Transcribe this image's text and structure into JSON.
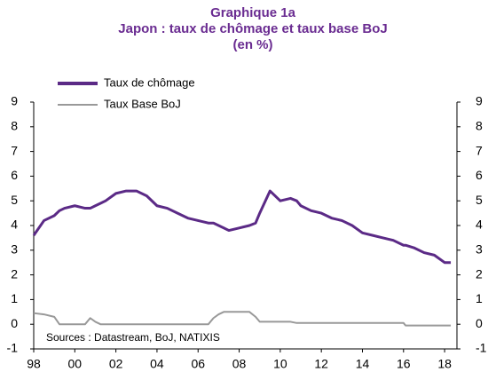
{
  "chart_data": {
    "type": "line",
    "title": "Graphique 1a",
    "subtitle": "Japon : taux de chômage et taux base BoJ",
    "unit_label": "(en %)",
    "annotation": "Sources : Datastream, BoJ, NATIXIS",
    "x": [
      1998.0,
      1998.5,
      1999.0,
      1999.25,
      1999.5,
      2000.0,
      2000.5,
      2000.75,
      2001.0,
      2001.25,
      2001.5,
      2002.0,
      2002.5,
      2003.0,
      2003.5,
      2004.0,
      2004.5,
      2005.0,
      2005.5,
      2006.0,
      2006.5,
      2006.75,
      2007.0,
      2007.25,
      2007.5,
      2008.0,
      2008.5,
      2008.8,
      2009.0,
      2009.5,
      2010.0,
      2010.5,
      2010.8,
      2011.0,
      2011.5,
      2012.0,
      2012.5,
      2013.0,
      2013.5,
      2014.0,
      2014.5,
      2015.0,
      2015.5,
      2016.0,
      2016.1,
      2016.5,
      2017.0,
      2017.5,
      2018.0,
      2018.3
    ],
    "series": [
      {
        "name": "Taux de chômage",
        "color": "#5b2a86",
        "values": [
          3.6,
          4.2,
          4.4,
          4.6,
          4.7,
          4.8,
          4.7,
          4.7,
          4.8,
          4.9,
          5.0,
          5.3,
          5.4,
          5.4,
          5.2,
          4.8,
          4.7,
          4.5,
          4.3,
          4.2,
          4.1,
          4.1,
          4.0,
          3.9,
          3.8,
          3.9,
          4.0,
          4.1,
          4.5,
          5.4,
          5.0,
          5.1,
          5.0,
          4.8,
          4.6,
          4.5,
          4.3,
          4.2,
          4.0,
          3.7,
          3.6,
          3.5,
          3.4,
          3.2,
          3.2,
          3.1,
          2.9,
          2.8,
          2.5,
          2.5
        ]
      },
      {
        "name": "Taux Base BoJ",
        "color": "#999999",
        "values": [
          0.45,
          0.4,
          0.3,
          0.0,
          0.0,
          0.0,
          0.0,
          0.25,
          0.1,
          0.0,
          0.0,
          0.0,
          0.0,
          0.0,
          0.0,
          0.0,
          0.0,
          0.0,
          0.0,
          0.0,
          0.0,
          0.25,
          0.4,
          0.5,
          0.5,
          0.5,
          0.5,
          0.3,
          0.1,
          0.1,
          0.1,
          0.1,
          0.05,
          0.05,
          0.05,
          0.05,
          0.05,
          0.05,
          0.05,
          0.05,
          0.05,
          0.05,
          0.05,
          0.05,
          -0.05,
          -0.05,
          -0.05,
          -0.05,
          -0.05,
          -0.05
        ]
      }
    ],
    "xlim": [
      1998,
      2018.6
    ],
    "xticks": [
      {
        "value": 1998,
        "label": "98"
      },
      {
        "value": 2000,
        "label": "00"
      },
      {
        "value": 2002,
        "label": "02"
      },
      {
        "value": 2004,
        "label": "04"
      },
      {
        "value": 2006,
        "label": "06"
      },
      {
        "value": 2008,
        "label": "08"
      },
      {
        "value": 2010,
        "label": "10"
      },
      {
        "value": 2012,
        "label": "12"
      },
      {
        "value": 2014,
        "label": "14"
      },
      {
        "value": 2016,
        "label": "16"
      },
      {
        "value": 2018,
        "label": "18"
      }
    ],
    "ylim": [
      -1,
      9
    ],
    "yticks": [
      -1,
      0,
      1,
      2,
      3,
      4,
      5,
      6,
      7,
      8,
      9
    ],
    "y2lim": [
      -1,
      9
    ],
    "y2ticks": [
      -1,
      0,
      1,
      2,
      3,
      4,
      5,
      6,
      7,
      8,
      9
    ],
    "legend": "top-left"
  }
}
